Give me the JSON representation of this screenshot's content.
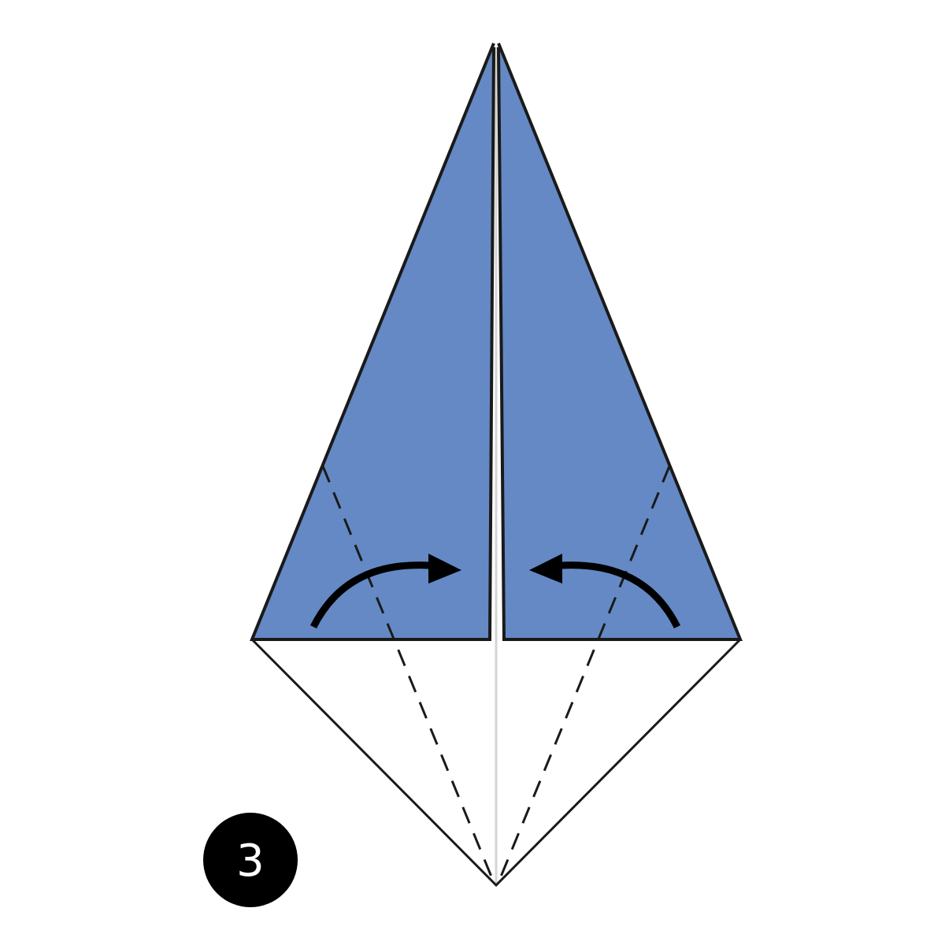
{
  "step": {
    "number": "3"
  },
  "colors": {
    "paper_front": "#6489c5",
    "paper_back": "#ffffff",
    "outline": "#1a1a1a",
    "arrow": "#000000",
    "badge": "#000000",
    "badge_text": "#ffffff"
  },
  "diagram": {
    "fold_type": "valley-fold",
    "arrows": [
      "fold-right-flap-arrow",
      "fold-left-flap-arrow"
    ]
  }
}
